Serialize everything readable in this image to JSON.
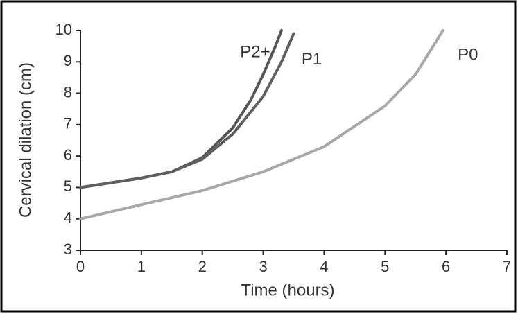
{
  "chart_data": {
    "type": "line",
    "xlabel": "Time (hours)",
    "ylabel": "Cervical dilation (cm)",
    "xlim": [
      0,
      7
    ],
    "xticks": [
      0,
      1,
      2,
      3,
      4,
      5,
      6,
      7
    ],
    "ylim": [
      3,
      10
    ],
    "yticks": [
      3,
      4,
      5,
      6,
      7,
      8,
      9,
      10
    ],
    "grid": false,
    "series": [
      {
        "name": "P2+",
        "color": "#575757",
        "x": [
          0,
          0.5,
          1,
          1.5,
          2,
          2.5,
          2.8,
          3,
          3.2,
          3.3
        ],
        "values": [
          5,
          5.15,
          5.3,
          5.5,
          5.95,
          6.9,
          7.8,
          8.6,
          9.5,
          10
        ]
      },
      {
        "name": "P1",
        "color": "#5f5f5f",
        "x": [
          0,
          0.5,
          1,
          1.5,
          2,
          2.5,
          3,
          3.3,
          3.5
        ],
        "values": [
          5,
          5.15,
          5.3,
          5.5,
          5.9,
          6.7,
          7.9,
          9,
          9.9
        ]
      },
      {
        "name": "P0",
        "color": "#a8a8a8",
        "x": [
          0,
          1,
          2,
          3,
          4,
          5,
          5.5,
          5.95
        ],
        "values": [
          4,
          4.45,
          4.9,
          5.5,
          6.3,
          7.6,
          8.6,
          10
        ]
      }
    ]
  }
}
